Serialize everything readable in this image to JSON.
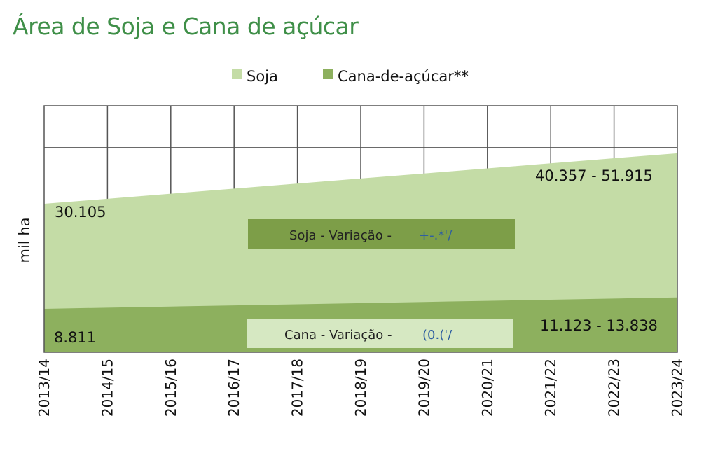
{
  "title": "Área de Soja e Cana de açúcar",
  "colors": {
    "title": "#3f8f48",
    "soja": "#c4dca6",
    "cana": "#8db05e",
    "soja_box": "#7d9e48",
    "cana_box": "#d6e8c2",
    "grid": "#555555"
  },
  "chart_data": {
    "type": "area",
    "title": "Área de Soja e Cana de açúcar",
    "ylabel": "mil  ha",
    "xlabel": "",
    "categories": [
      "2013/14",
      "2014/15",
      "2015/16",
      "2016/17",
      "2017/18",
      "2018/19",
      "2019/20",
      "2020/21",
      "2021/22",
      "2022/23",
      "2023/24"
    ],
    "series": [
      {
        "name": "Soja",
        "values": [
          30105,
          31130,
          32160,
          33185,
          34210,
          35240,
          36265,
          37290,
          38320,
          39345,
          40357
        ]
      },
      {
        "name": "Cana-de-açúcar**",
        "values": [
          8811,
          9040,
          9270,
          9500,
          9730,
          9960,
          10200,
          10430,
          10660,
          10890,
          11123
        ]
      }
    ],
    "ylim": [
      0,
      50000
    ],
    "grid": true,
    "legend": "top-center",
    "annotations": {
      "soja_start": "30.105",
      "soja_end": "40.357 - 51.915",
      "cana_start": "8.811",
      "cana_end": "11.123  - 13.838",
      "soja_box_label": "Soja - Variação -",
      "soja_box_value": "+-.*'/",
      "cana_box_label": "Cana - Variação -",
      "cana_box_value": "(0.('/"
    }
  }
}
